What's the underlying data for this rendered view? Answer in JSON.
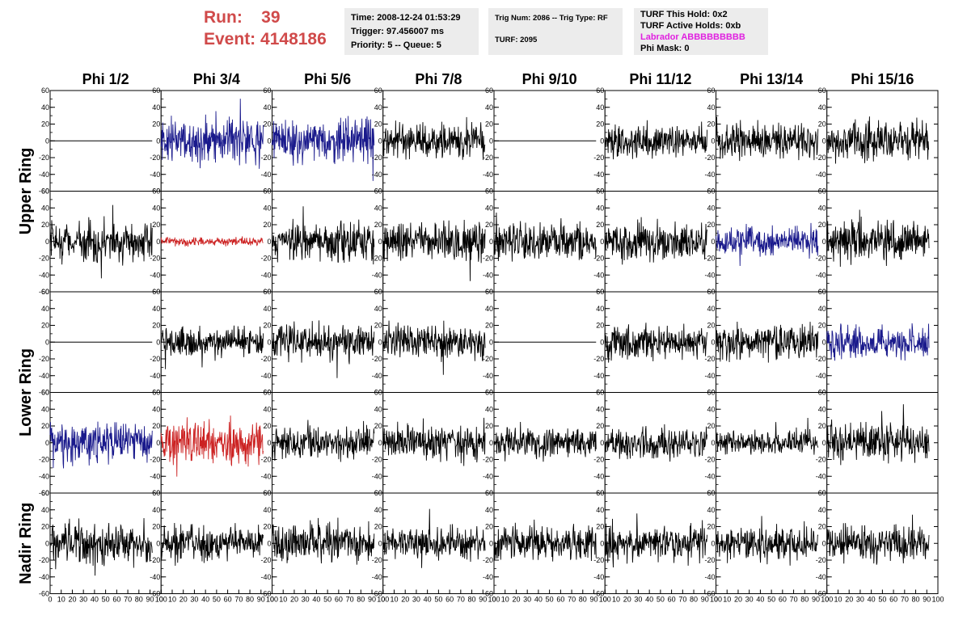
{
  "header": {
    "run_label": "Run:",
    "run_value": "39",
    "event_label": "Event:",
    "event_value": "4148186",
    "time": "Time: 2008-12-24 01:53:29",
    "trigger": "Trigger: 97.456007 ms",
    "priority": "Priority: 5 -- Queue: 5",
    "trig_num": "Trig Num: 2086 -- Trig Type: RF",
    "turf": "TURF: 2095",
    "turf_this_hold": "TURF This Hold: 0x2",
    "turf_active_holds": "TURF Active Holds: 0xb",
    "labrador": "Labrador ABBBBBBBBB",
    "phi_mask": "Phi Mask: 0"
  },
  "colors": {
    "header_red": "#d04a4a",
    "labrador_magenta": "#e020e0",
    "trace_black": "#000000",
    "trace_blue": "#1a1a8c",
    "trace_red": "#cc2222"
  },
  "chart_data": {
    "type": "line",
    "columns": [
      "Phi 1/2",
      "Phi 3/4",
      "Phi 5/6",
      "Phi 7/8",
      "Phi 9/10",
      "Phi 11/12",
      "Phi 13/14",
      "Phi 15/16"
    ],
    "ring_labels": [
      {
        "label": "Upper Ring",
        "rows": [
          0,
          1
        ]
      },
      {
        "label": "Lower Ring",
        "rows": [
          2,
          3
        ]
      },
      {
        "label": "Nadir Ring",
        "rows": [
          4
        ]
      }
    ],
    "ylim": [
      -60,
      60
    ],
    "yticks": [
      -60,
      -40,
      -20,
      0,
      20,
      40,
      60
    ],
    "xlim": [
      0,
      100
    ],
    "xticks": [
      0,
      10,
      20,
      30,
      40,
      50,
      60,
      70,
      80,
      90,
      100
    ],
    "samples": 260,
    "grid": false,
    "panels": [
      [
        {
          "color": "black",
          "amp": 0
        },
        {
          "color": "blue",
          "amp": 15
        },
        {
          "color": "blue",
          "amp": 15
        },
        {
          "color": "black",
          "amp": 12
        },
        {
          "color": "black",
          "amp": 0
        },
        {
          "color": "black",
          "amp": 11
        },
        {
          "color": "black",
          "amp": 12
        },
        {
          "color": "black",
          "amp": 13
        }
      ],
      [
        {
          "color": "black",
          "amp": 14
        },
        {
          "color": "red",
          "amp": 3
        },
        {
          "color": "black",
          "amp": 14
        },
        {
          "color": "black",
          "amp": 13
        },
        {
          "color": "black",
          "amp": 13
        },
        {
          "color": "black",
          "amp": 13
        },
        {
          "color": "blue",
          "amp": 10
        },
        {
          "color": "black",
          "amp": 15
        }
      ],
      [
        {
          "color": "black",
          "amp": 0
        },
        {
          "color": "black",
          "amp": 10
        },
        {
          "color": "black",
          "amp": 12
        },
        {
          "color": "black",
          "amp": 12
        },
        {
          "color": "black",
          "amp": 0
        },
        {
          "color": "black",
          "amp": 12
        },
        {
          "color": "black",
          "amp": 13
        },
        {
          "color": "blue",
          "amp": 11
        }
      ],
      [
        {
          "color": "blue",
          "amp": 15
        },
        {
          "color": "red",
          "amp": 15
        },
        {
          "color": "black",
          "amp": 12
        },
        {
          "color": "black",
          "amp": 13
        },
        {
          "color": "black",
          "amp": 11
        },
        {
          "color": "black",
          "amp": 11
        },
        {
          "color": "black",
          "amp": 8
        },
        {
          "color": "black",
          "amp": 14
        }
      ],
      [
        {
          "color": "black",
          "amp": 15
        },
        {
          "color": "black",
          "amp": 12
        },
        {
          "color": "black",
          "amp": 14
        },
        {
          "color": "black",
          "amp": 11
        },
        {
          "color": "black",
          "amp": 12
        },
        {
          "color": "black",
          "amp": 13
        },
        {
          "color": "black",
          "amp": 12
        },
        {
          "color": "black",
          "amp": 13
        }
      ]
    ]
  }
}
